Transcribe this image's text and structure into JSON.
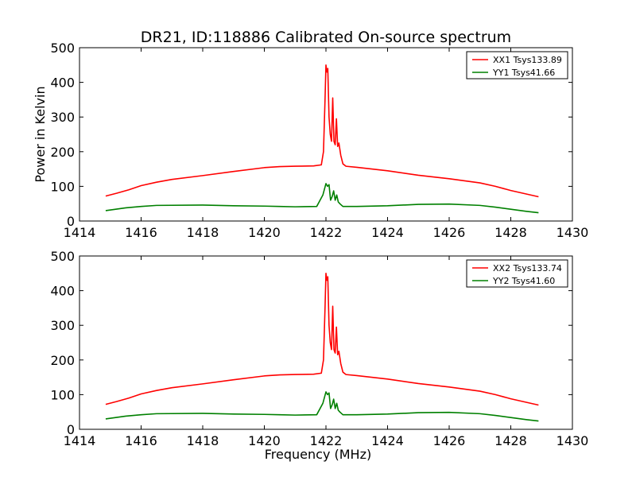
{
  "figure": {
    "title": "DR21, ID:118886 Calibrated On-source spectrum"
  },
  "chart_data": [
    {
      "type": "line",
      "ylabel": "Power in Kelvin",
      "xlabel": "",
      "xlim": [
        1414,
        1430
      ],
      "ylim": [
        0,
        500
      ],
      "xticks": [
        1414,
        1416,
        1418,
        1420,
        1422,
        1424,
        1426,
        1428,
        1430
      ],
      "yticks": [
        0,
        100,
        200,
        300,
        400,
        500
      ],
      "legend": "top-right",
      "grid": false,
      "series": [
        {
          "name": "XX1 Tsys133.89",
          "color": "#ff0000",
          "x": [
            1414.85,
            1415.2,
            1415.6,
            1416.0,
            1416.5,
            1417.0,
            1418.0,
            1419.0,
            1420.0,
            1420.5,
            1421.0,
            1421.6,
            1421.85,
            1421.92,
            1421.97,
            1422.0,
            1422.03,
            1422.06,
            1422.1,
            1422.14,
            1422.18,
            1422.22,
            1422.26,
            1422.3,
            1422.34,
            1422.38,
            1422.42,
            1422.48,
            1422.55,
            1422.65,
            1423.0,
            1424.0,
            1425.0,
            1426.0,
            1427.0,
            1427.5,
            1428.0,
            1428.5,
            1428.9
          ],
          "y": [
            72,
            80,
            90,
            102,
            112,
            120,
            131,
            143,
            154,
            157,
            158,
            159,
            162,
            200,
            350,
            450,
            430,
            440,
            300,
            250,
            230,
            355,
            230,
            220,
            295,
            215,
            225,
            190,
            165,
            158,
            155,
            145,
            132,
            122,
            110,
            100,
            88,
            78,
            70
          ]
        },
        {
          "name": "YY1 Tsys41.66",
          "color": "#008000",
          "x": [
            1414.85,
            1415.5,
            1416.0,
            1416.5,
            1418.0,
            1419.0,
            1420.0,
            1420.5,
            1421.0,
            1421.7,
            1421.9,
            1422.0,
            1422.05,
            1422.1,
            1422.15,
            1422.2,
            1422.25,
            1422.3,
            1422.35,
            1422.4,
            1422.45,
            1422.55,
            1423.0,
            1424.0,
            1425.0,
            1426.0,
            1427.0,
            1427.5,
            1428.0,
            1428.5,
            1428.9
          ],
          "y": [
            30,
            38,
            42,
            45,
            46,
            44,
            43,
            42,
            41,
            42,
            75,
            108,
            100,
            105,
            60,
            70,
            87,
            60,
            75,
            55,
            50,
            42,
            42,
            44,
            48,
            49,
            45,
            40,
            34,
            28,
            24
          ]
        }
      ]
    },
    {
      "type": "line",
      "ylabel": "",
      "xlabel": "Frequency (MHz)",
      "xlim": [
        1414,
        1430
      ],
      "ylim": [
        0,
        500
      ],
      "xticks": [
        1414,
        1416,
        1418,
        1420,
        1422,
        1424,
        1426,
        1428,
        1430
      ],
      "yticks": [
        0,
        100,
        200,
        300,
        400,
        500
      ],
      "legend": "top-right",
      "grid": false,
      "series": [
        {
          "name": "XX2 Tsys133.74",
          "color": "#ff0000",
          "x": [
            1414.85,
            1415.2,
            1415.6,
            1416.0,
            1416.5,
            1417.0,
            1418.0,
            1419.0,
            1420.0,
            1420.5,
            1421.0,
            1421.6,
            1421.85,
            1421.92,
            1421.97,
            1422.0,
            1422.03,
            1422.06,
            1422.1,
            1422.14,
            1422.18,
            1422.22,
            1422.26,
            1422.3,
            1422.34,
            1422.38,
            1422.42,
            1422.48,
            1422.55,
            1422.65,
            1423.0,
            1424.0,
            1425.0,
            1426.0,
            1427.0,
            1427.5,
            1428.0,
            1428.5,
            1428.9
          ],
          "y": [
            72,
            80,
            90,
            102,
            112,
            120,
            131,
            143,
            154,
            157,
            158,
            159,
            162,
            200,
            350,
            450,
            430,
            440,
            300,
            250,
            230,
            355,
            230,
            220,
            295,
            215,
            225,
            190,
            165,
            158,
            155,
            145,
            132,
            122,
            110,
            100,
            88,
            78,
            70
          ]
        },
        {
          "name": "YY2 Tsys41.60",
          "color": "#008000",
          "x": [
            1414.85,
            1415.5,
            1416.0,
            1416.5,
            1418.0,
            1419.0,
            1420.0,
            1420.5,
            1421.0,
            1421.7,
            1421.9,
            1422.0,
            1422.05,
            1422.1,
            1422.15,
            1422.2,
            1422.25,
            1422.3,
            1422.35,
            1422.4,
            1422.45,
            1422.55,
            1423.0,
            1424.0,
            1425.0,
            1426.0,
            1427.0,
            1427.5,
            1428.0,
            1428.5,
            1428.9
          ],
          "y": [
            30,
            38,
            42,
            45,
            46,
            44,
            43,
            42,
            41,
            42,
            75,
            108,
            100,
            105,
            60,
            70,
            87,
            60,
            75,
            55,
            50,
            42,
            42,
            44,
            48,
            49,
            45,
            40,
            34,
            28,
            24
          ]
        }
      ]
    }
  ]
}
